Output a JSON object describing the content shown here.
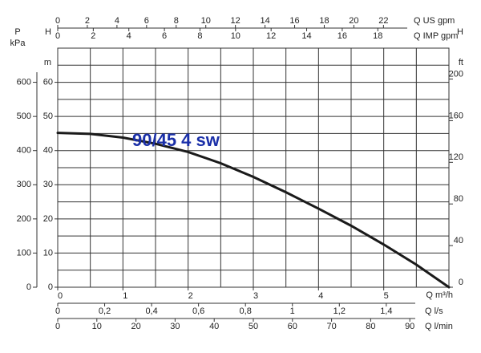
{
  "chart_data": {
    "type": "line",
    "x_label": "Q m³/h",
    "y_label": "H",
    "y_unit": "m",
    "x": [
      0,
      0.5,
      1,
      1.5,
      2,
      2.5,
      3,
      3.5,
      4,
      4.5,
      5,
      5.5,
      6
    ],
    "series": [
      {
        "name": "90/45 4 sw",
        "color": "#1a1a1a",
        "label_color": "#1a2fa8",
        "values": [
          45.2,
          44.9,
          43.8,
          42,
          39.6,
          36.3,
          32.3,
          27.8,
          23,
          18,
          12.5,
          6.6,
          0
        ]
      }
    ],
    "xlim": [
      0,
      6
    ],
    "xticks": [
      0,
      1,
      2,
      3,
      4,
      5
    ],
    "ylim": [
      0,
      70
    ],
    "yticks": [
      0,
      10,
      20,
      30,
      40,
      50,
      60
    ],
    "grid": true,
    "xgrid": [
      0.5,
      1,
      1.5,
      2,
      2.5,
      3,
      3.5,
      4,
      4.5,
      5,
      5.5
    ],
    "ygrid": [
      5,
      10,
      15,
      20,
      25,
      30,
      35,
      40,
      45,
      50,
      55,
      60,
      65
    ],
    "extra_axes": [
      {
        "side": "top",
        "label": "Q US gpm",
        "lim": [
          0,
          26.42
        ],
        "ticks": [
          0,
          2,
          4,
          6,
          8,
          10,
          12,
          14,
          16,
          18,
          20,
          22
        ]
      },
      {
        "side": "top",
        "label": "Q IMP gpm",
        "lim": [
          0,
          22
        ],
        "ticks": [
          0,
          2,
          4,
          6,
          8,
          10,
          12,
          14,
          16,
          18
        ]
      },
      {
        "side": "bottom",
        "label": "Q l/s",
        "lim": [
          0,
          1.667
        ],
        "ticks": [
          0,
          {
            "value": 0.2,
            "label": "0,2"
          },
          {
            "value": 0.4,
            "label": "0,4"
          },
          {
            "value": 0.6,
            "label": "0,6"
          },
          {
            "value": 0.8,
            "label": "0,8"
          },
          1,
          {
            "value": 1.2,
            "label": "1,2"
          },
          {
            "value": 1.4,
            "label": "1,4"
          }
        ]
      },
      {
        "side": "bottom",
        "label": "Q l/min",
        "lim": [
          0,
          100
        ],
        "ticks": [
          0,
          10,
          20,
          30,
          40,
          50,
          60,
          70,
          80,
          90
        ]
      },
      {
        "side": "left",
        "label": "P",
        "unit": "kPa",
        "lim": [
          0,
          700
        ],
        "ticks": [
          0,
          100,
          200,
          300,
          400,
          500,
          600
        ]
      },
      {
        "side": "right",
        "label": "H",
        "unit": "ft",
        "lim": [
          0,
          229.7
        ],
        "ticks": [
          0,
          40,
          80,
          120,
          160,
          200
        ]
      }
    ]
  }
}
